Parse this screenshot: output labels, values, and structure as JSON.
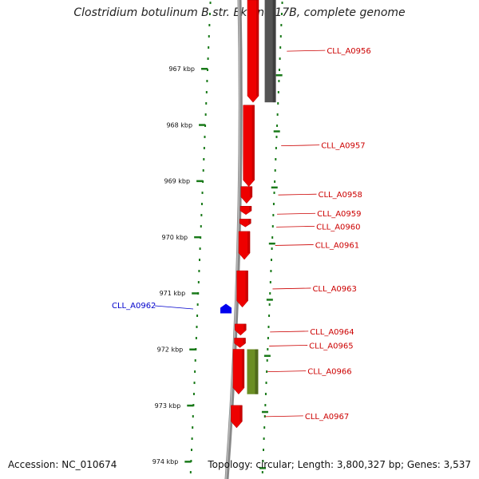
{
  "title": "Clostridium botulinum B str. Eklund 17B, complete genome",
  "footer": {
    "accession": "Accession: NC_010674",
    "topology": "Topology: circular; Length: 3,800,327 bp; Genes: 3,537"
  },
  "colors": {
    "forward_gene": "#ee0000",
    "reverse_gene": "#0000ee",
    "gray_feature": "#555555",
    "green_feature": "#6b8e23",
    "tick": "#1a7a1a",
    "backbone": "#888888"
  },
  "ruler": {
    "unit": "kbp",
    "ticks": [
      {
        "kbp": 967,
        "label": "967 kbp"
      },
      {
        "kbp": 968,
        "label": "968 kbp"
      },
      {
        "kbp": 969,
        "label": "969 kbp"
      },
      {
        "kbp": 970,
        "label": "970 kbp"
      },
      {
        "kbp": 971,
        "label": "971 kbp"
      },
      {
        "kbp": 972,
        "label": "972 kbp"
      },
      {
        "kbp": 973,
        "label": "973 kbp"
      },
      {
        "kbp": 974,
        "label": "974 kbp"
      }
    ]
  },
  "genes": [
    {
      "name": "CLL_A0956",
      "strand": "+",
      "start_kbp": 966.6,
      "end_kbp": 967.6,
      "color": "red"
    },
    {
      "name": "CLL_A0957",
      "strand": "+",
      "start_kbp": 967.65,
      "end_kbp": 969.1,
      "color": "red"
    },
    {
      "name": "CLL_A0958",
      "strand": "+",
      "start_kbp": 969.1,
      "end_kbp": 969.4,
      "color": "red"
    },
    {
      "name": "CLL_A0959",
      "strand": "+",
      "start_kbp": 969.45,
      "end_kbp": 969.6,
      "color": "red"
    },
    {
      "name": "CLL_A0960",
      "strand": "+",
      "start_kbp": 969.68,
      "end_kbp": 969.82,
      "color": "red"
    },
    {
      "name": "CLL_A0961",
      "strand": "+",
      "start_kbp": 969.9,
      "end_kbp": 970.4,
      "color": "red"
    },
    {
      "name": "CLL_A0963",
      "strand": "+",
      "start_kbp": 970.6,
      "end_kbp": 971.25,
      "color": "red"
    },
    {
      "name": "CLL_A0962",
      "strand": "-",
      "start_kbp": 971.2,
      "end_kbp": 971.35,
      "color": "blue"
    },
    {
      "name": "CLL_A0964",
      "strand": "+",
      "start_kbp": 971.55,
      "end_kbp": 971.75,
      "color": "red"
    },
    {
      "name": "CLL_A0965",
      "strand": "+",
      "start_kbp": 971.8,
      "end_kbp": 971.97,
      "color": "red"
    },
    {
      "name": "CLL_A0966",
      "strand": "+",
      "start_kbp": 972.0,
      "end_kbp": 972.8,
      "color": "red"
    },
    {
      "name": "CLL_A0967",
      "strand": "+",
      "start_kbp": 973.0,
      "end_kbp": 973.4,
      "color": "red"
    }
  ],
  "other_features": [
    {
      "type": "gray",
      "start_kbp": 966.6,
      "end_kbp": 967.6
    },
    {
      "type": "green",
      "start_kbp": 972.0,
      "end_kbp": 972.8
    }
  ]
}
